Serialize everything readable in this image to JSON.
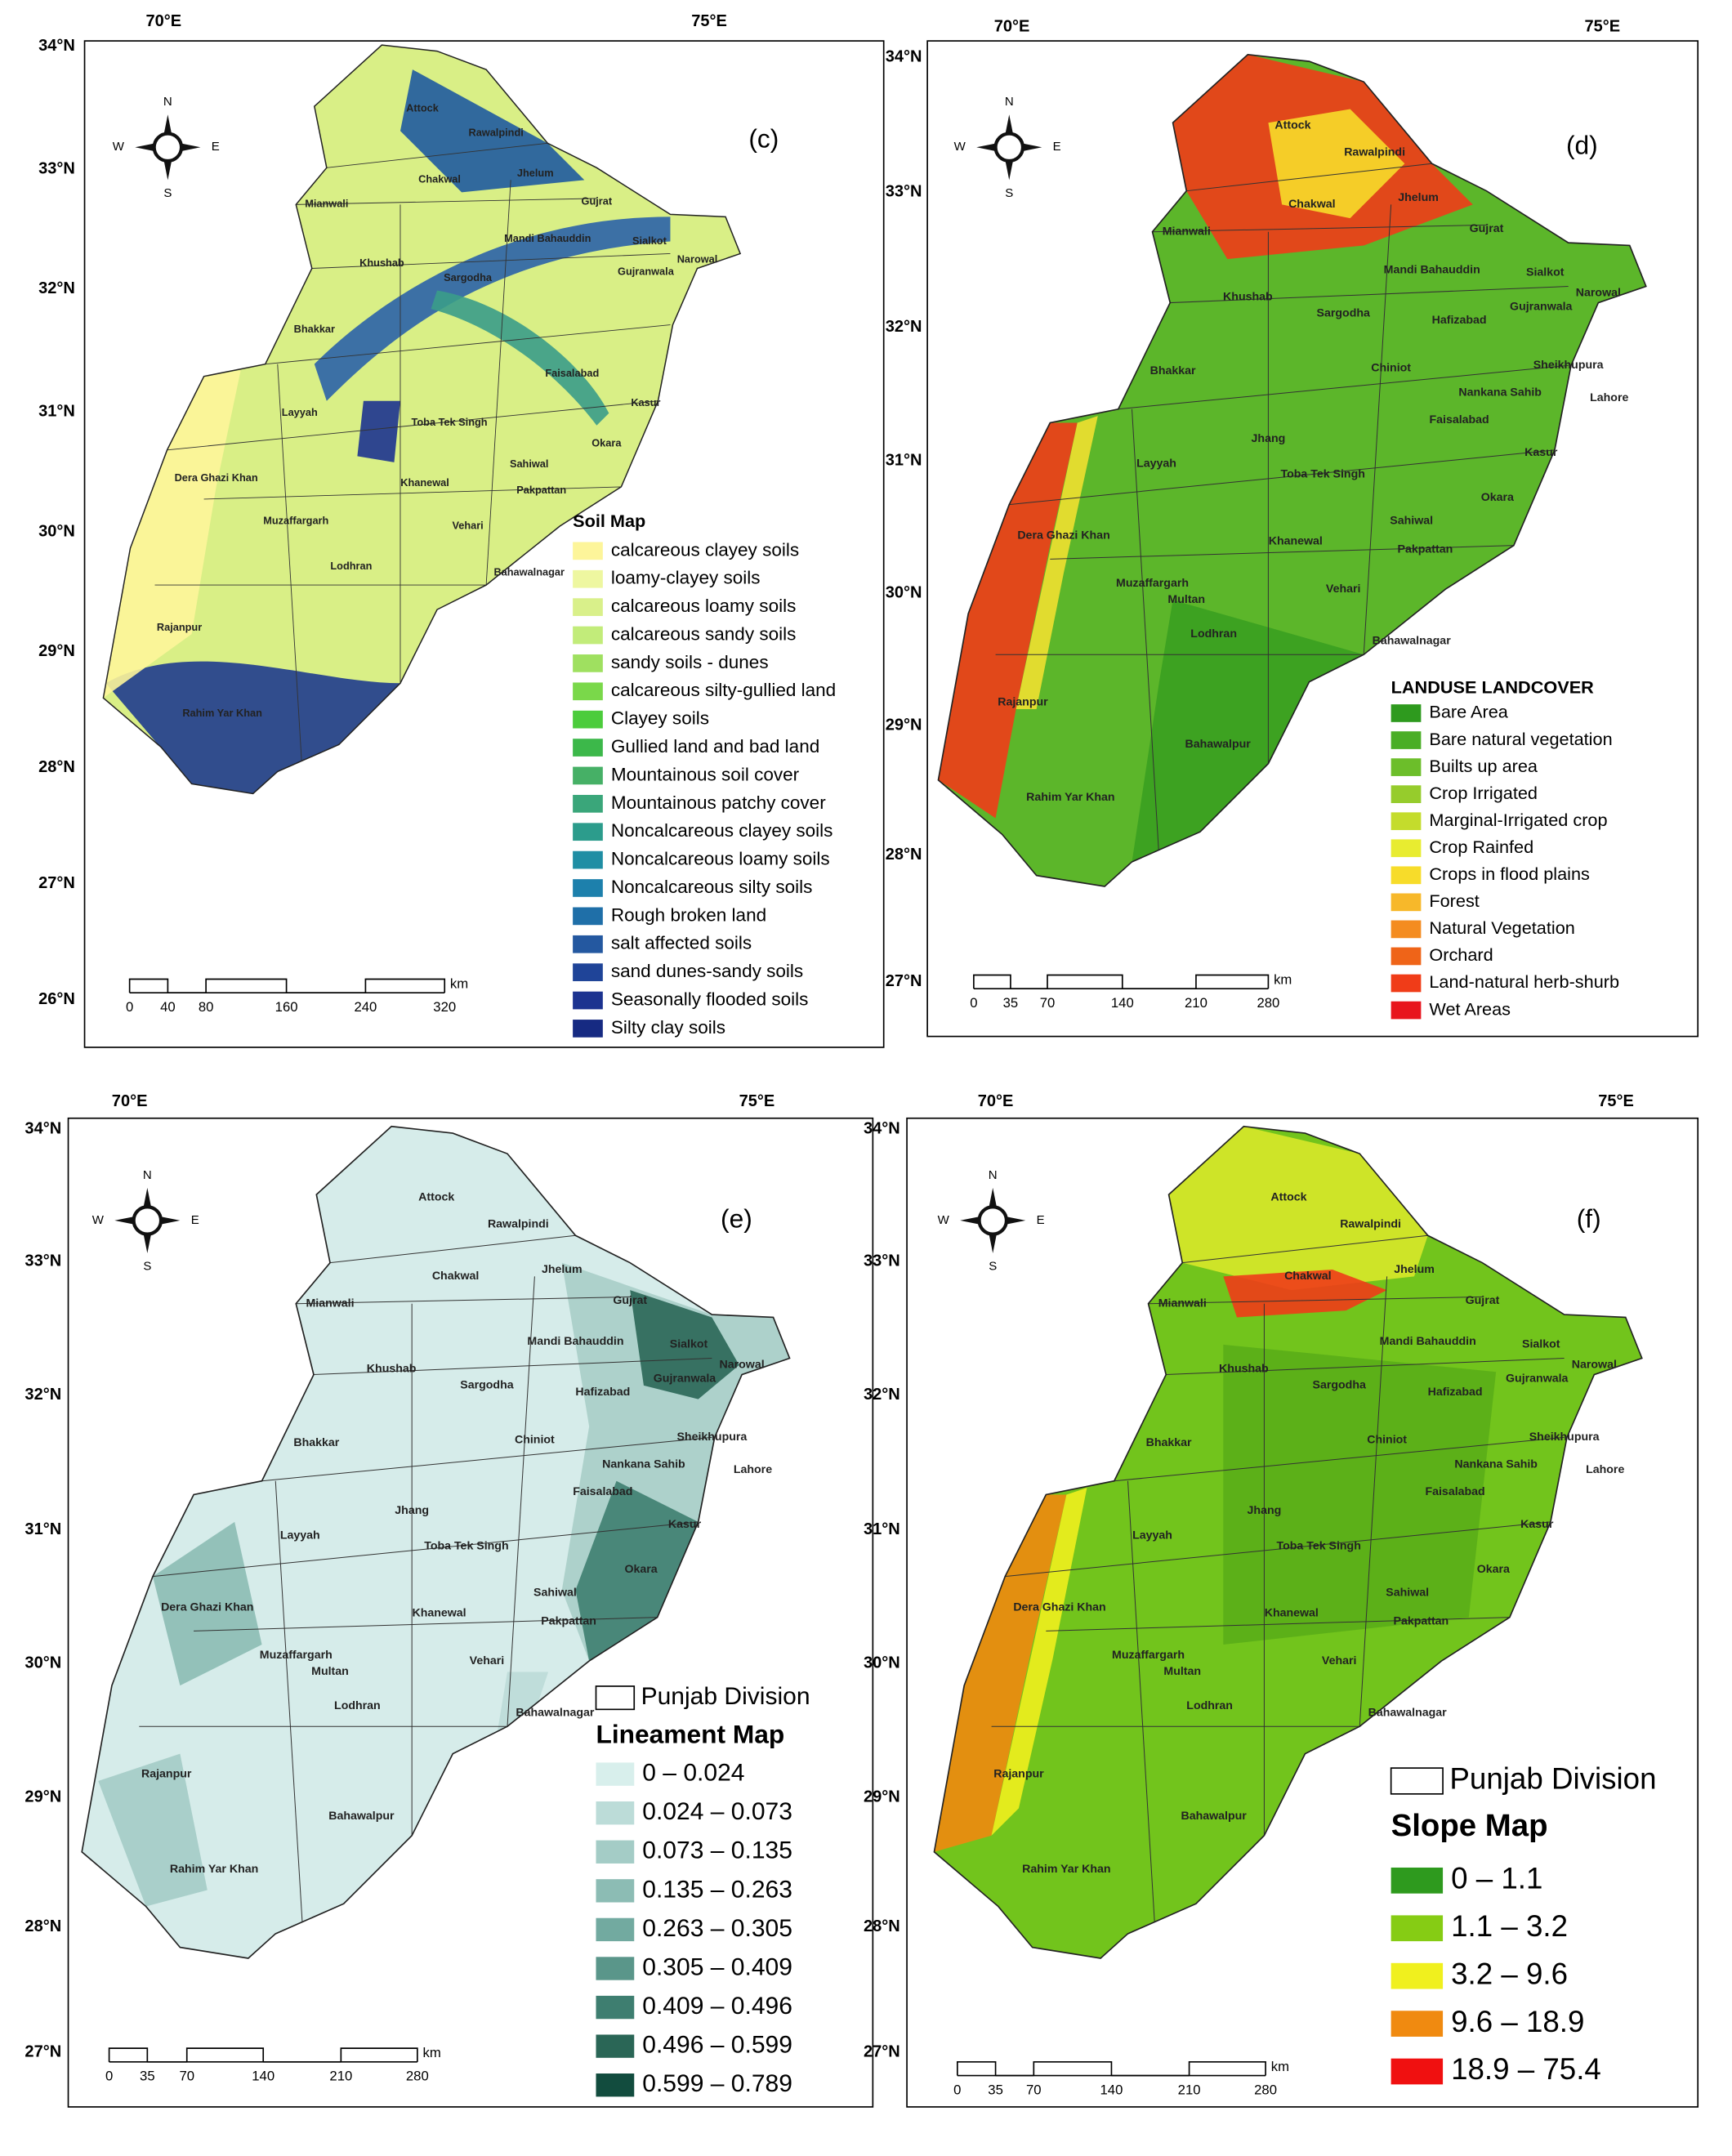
{
  "compass": [
    "N",
    "S",
    "E",
    "W"
  ],
  "districts": [
    "Attock",
    "Rawalpindi",
    "Chakwal",
    "Jhelum",
    "Mianwali",
    "Gujrat",
    "Mandi Bahauddin",
    "Sialkot",
    "Khushab",
    "Sargodha",
    "Hafizabad",
    "Gujranwala",
    "Narowal",
    "Bhakkar",
    "Chiniot",
    "Sheikhupura",
    "Nankana Sahib",
    "Lahore",
    "Faisalabad",
    "Jhang",
    "Layyah",
    "Toba Tek Singh",
    "Kasur",
    "Okara",
    "Sahiwal",
    "Dera Ghazi Khan",
    "Khanewal",
    "Pakpattan",
    "Vehari",
    "Muzaffargarh",
    "Multan",
    "Lodhran",
    "Bahawalnagar",
    "Rajanpur",
    "Bahawalpur",
    "Rahim Yar Khan"
  ],
  "panels": [
    {
      "label": "(c)",
      "lon_ticks": [
        "70°E",
        "75°E"
      ],
      "lat_ticks": [
        "34°N",
        "33°N",
        "32°N",
        "31°N",
        "30°N",
        "29°N",
        "28°N",
        "27°N",
        "26°N"
      ],
      "scale": [
        "0",
        "40",
        "80",
        "160",
        "240",
        "320"
      ],
      "unit": "km",
      "base_color": "#d9ef86",
      "legend": {
        "title": "Soil Map",
        "items": [
          {
            "label": "calcareous clayey soils",
            "color": "#fdf59a"
          },
          {
            "label": "loamy-clayey soils",
            "color": "#eef7a0"
          },
          {
            "label": "calcareous loamy soils",
            "color": "#d9f08a"
          },
          {
            "label": "calcareous sandy soils",
            "color": "#c2ec7a"
          },
          {
            "label": "sandy soils - dunes",
            "color": "#9fe060"
          },
          {
            "label": "calcareous silty-gullied land",
            "color": "#7ad84a"
          },
          {
            "label": "Clayey soils",
            "color": "#4ccc3c"
          },
          {
            "label": "Gullied land and bad land",
            "color": "#3cb84a"
          },
          {
            "label": "Mountainous soil cover",
            "color": "#46b066"
          },
          {
            "label": "Mountainous patchy cover",
            "color": "#3aa67a"
          },
          {
            "label": "Noncalcareous clayey soils",
            "color": "#2c9c8c"
          },
          {
            "label": "Noncalcareous loamy soils",
            "color": "#1f8ea4"
          },
          {
            "label": "Noncalcareous silty soils",
            "color": "#1d80ac"
          },
          {
            "label": "Rough broken land",
            "color": "#1f6fa8"
          },
          {
            "label": "salt affected soils",
            "color": "#2458a0"
          },
          {
            "label": "sand dunes-sandy soils",
            "color": "#1f4498"
          },
          {
            "label": "Seasonally flooded soils",
            "color": "#1c3390"
          },
          {
            "label": "Silty clay soils",
            "color": "#162a82"
          }
        ]
      }
    },
    {
      "label": "(d)",
      "lon_ticks": [
        "70°E",
        "75°E"
      ],
      "lat_ticks": [
        "34°N",
        "33°N",
        "32°N",
        "31°N",
        "30°N",
        "29°N",
        "28°N",
        "27°N"
      ],
      "scale": [
        "0",
        "35",
        "70",
        "140",
        "210",
        "280"
      ],
      "unit": "km",
      "base_color": "#5cb62a",
      "legend": {
        "title": "LANDUSE LANDCOVER",
        "items": [
          {
            "label": "Bare Area",
            "color": "#2e9a1e"
          },
          {
            "label": "Bare natural vegetation",
            "color": "#4aae26"
          },
          {
            "label": "Builts up area",
            "color": "#6cbe2a"
          },
          {
            "label": "Crop Irrigated",
            "color": "#96cc2c"
          },
          {
            "label": "Marginal-Irrigated crop",
            "color": "#c4dc2c"
          },
          {
            "label": "Crop Rainfed",
            "color": "#e8ec30"
          },
          {
            "label": "Crops in flood plains",
            "color": "#f7dc2a"
          },
          {
            "label": "Forest",
            "color": "#f7b82a"
          },
          {
            "label": "Natural Vegetation",
            "color": "#f48c20"
          },
          {
            "label": "Orchard",
            "color": "#ef6418"
          },
          {
            "label": "Land-natural herb-shurb",
            "color": "#f03c18"
          },
          {
            "label": "Wet Areas",
            "color": "#e8141c"
          }
        ]
      }
    },
    {
      "label": "(e)",
      "lon_ticks": [
        "70°E",
        "75°E"
      ],
      "lat_ticks": [
        "34°N",
        "33°N",
        "32°N",
        "31°N",
        "30°N",
        "29°N",
        "28°N",
        "27°N"
      ],
      "scale": [
        "0",
        "35",
        "70",
        "140",
        "210",
        "280"
      ],
      "unit": "km",
      "base_color": "#d6ecea",
      "boundary_label": "Punjab Division",
      "legend": {
        "title": "Lineament Map",
        "items": [
          {
            "label": "0 – 0.024",
            "color": "#d8efec"
          },
          {
            "label": "0.024 – 0.073",
            "color": "#bcdcd8"
          },
          {
            "label": "0.073 – 0.135",
            "color": "#a4ccc6"
          },
          {
            "label": "0.135 – 0.263",
            "color": "#8cbcb4"
          },
          {
            "label": "0.263 – 0.305",
            "color": "#72aaa0"
          },
          {
            "label": "0.305 – 0.409",
            "color": "#5a968a"
          },
          {
            "label": "0.409 – 0.496",
            "color": "#3e7e70"
          },
          {
            "label": "0.496 – 0.599",
            "color": "#2a6656"
          },
          {
            "label": "0.599 – 0.789",
            "color": "#124c3e"
          }
        ]
      }
    },
    {
      "label": "(f)",
      "lon_ticks": [
        "70°E",
        "75°E"
      ],
      "lat_ticks": [
        "34°N",
        "33°N",
        "32°N",
        "31°N",
        "30°N",
        "29°N",
        "28°N",
        "27°N"
      ],
      "scale": [
        "0",
        "35",
        "70",
        "140",
        "210",
        "280"
      ],
      "unit": "km",
      "base_color": "#72c41c",
      "boundary_label": "Punjab Division",
      "legend": {
        "title": "Slope Map",
        "items": [
          {
            "label": "0 – 1.1",
            "color": "#2e9a1e"
          },
          {
            "label": "1.1 – 3.2",
            "color": "#86cc14"
          },
          {
            "label": "3.2 – 9.6",
            "color": "#f0f01e"
          },
          {
            "label": "9.6 – 18.9",
            "color": "#f08a10"
          },
          {
            "label": "18.9 – 75.4",
            "color": "#f01010"
          }
        ]
      }
    }
  ]
}
